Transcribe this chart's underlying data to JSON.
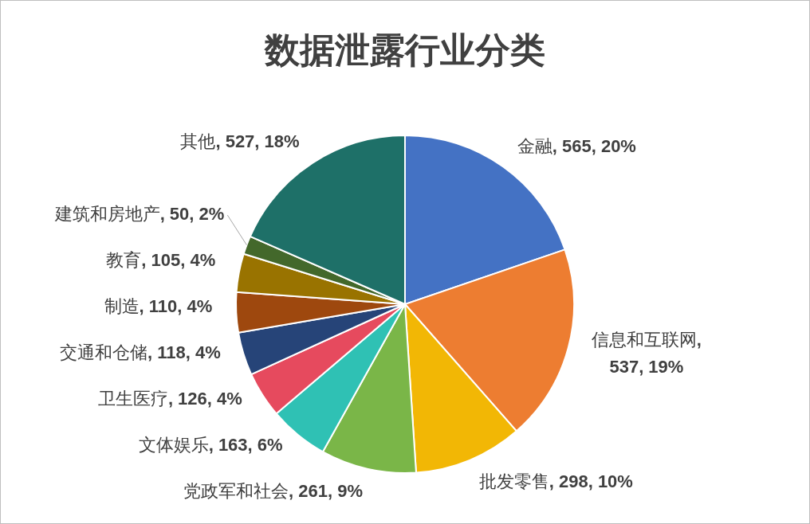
{
  "chart_data": {
    "type": "pie",
    "title": "数据泄露行业分类",
    "categories": [
      "金融",
      "信息和互联网",
      "批发零售",
      "党政军和社会",
      "文体娱乐",
      "卫生医疗",
      "交通和仓储",
      "制造",
      "教育",
      "建筑和房地产",
      "其他"
    ],
    "values": [
      565,
      537,
      298,
      261,
      163,
      126,
      118,
      110,
      105,
      50,
      527
    ],
    "colors": [
      "#4472c4",
      "#ed7d31",
      "#f2b705",
      "#7ab648",
      "#2fc1b4",
      "#e64a5e",
      "#264478",
      "#9e480e",
      "#997300",
      "#43682b",
      "#1e7068"
    ],
    "value_labels": [
      ", 565, 20%",
      ", 537, 19%",
      ", 298, 10%",
      ", 261, 9%",
      ", 163, 6%",
      ", 126, 4%",
      ", 118, 4%",
      ", 110, 4%",
      ", 105, 4%",
      ", 50, 2%",
      ", 527, 18%"
    ]
  }
}
